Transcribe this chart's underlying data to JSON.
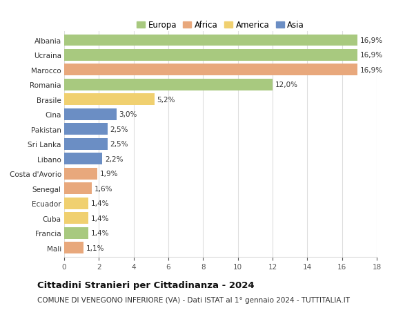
{
  "countries": [
    "Albania",
    "Ucraina",
    "Marocco",
    "Romania",
    "Brasile",
    "Cina",
    "Pakistan",
    "Sri Lanka",
    "Libano",
    "Costa d'Avorio",
    "Senegal",
    "Ecuador",
    "Cuba",
    "Francia",
    "Mali"
  ],
  "values": [
    16.9,
    16.9,
    16.9,
    12.0,
    5.2,
    3.0,
    2.5,
    2.5,
    2.2,
    1.9,
    1.6,
    1.4,
    1.4,
    1.4,
    1.1
  ],
  "labels": [
    "16,9%",
    "16,9%",
    "16,9%",
    "12,0%",
    "5,2%",
    "3,0%",
    "2,5%",
    "2,5%",
    "2,2%",
    "1,9%",
    "1,6%",
    "1,4%",
    "1,4%",
    "1,4%",
    "1,1%"
  ],
  "continents": [
    "Europa",
    "Europa",
    "Africa",
    "Europa",
    "America",
    "Asia",
    "Asia",
    "Asia",
    "Asia",
    "Africa",
    "Africa",
    "America",
    "America",
    "Europa",
    "Africa"
  ],
  "colors": {
    "Europa": "#a8c97f",
    "Africa": "#e8a87c",
    "America": "#f0d070",
    "Asia": "#6b8ec4"
  },
  "legend_order": [
    "Europa",
    "Africa",
    "America",
    "Asia"
  ],
  "title": "Cittadini Stranieri per Cittadinanza - 2024",
  "subtitle": "COMUNE DI VENEGONO INFERIORE (VA) - Dati ISTAT al 1° gennaio 2024 - TUTTITALIA.IT",
  "xlim": [
    0,
    18
  ],
  "xticks": [
    0,
    2,
    4,
    6,
    8,
    10,
    12,
    14,
    16,
    18
  ],
  "background_color": "#ffffff",
  "grid_color": "#dddddd",
  "bar_height": 0.78,
  "label_fontsize": 7.5,
  "title_fontsize": 9.5,
  "subtitle_fontsize": 7.5,
  "legend_fontsize": 8.5,
  "tick_fontsize": 7.5
}
